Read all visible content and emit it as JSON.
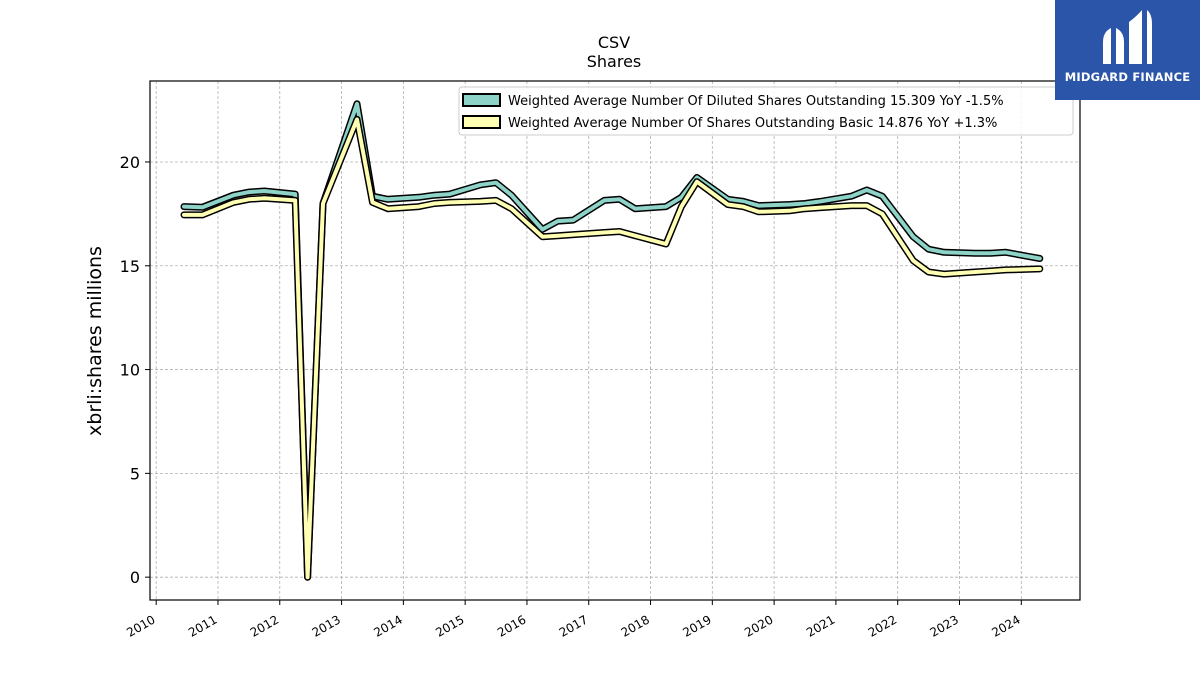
{
  "chart_data": {
    "type": "line",
    "title": "CSV",
    "subtitle": "Shares",
    "ylabel": "xbrli:shares millions",
    "xlabel": "",
    "ylim": [
      -1.1,
      23.9
    ],
    "xlim": [
      2009.9,
      2024.95
    ],
    "yticks": [
      0,
      5,
      10,
      15,
      20
    ],
    "xticks": [
      2010,
      2011,
      2012,
      2013,
      2014,
      2015,
      2016,
      2017,
      2018,
      2019,
      2020,
      2021,
      2022,
      2023,
      2024
    ],
    "grid": true,
    "legend_position": "top-right",
    "series": [
      {
        "name": "Weighted Average Number Of Diluted Shares Outstanding  15.309 YoY -1.5%",
        "color": "#8dd3c7",
        "points": [
          [
            2010.45,
            17.85
          ],
          [
            2010.75,
            17.82
          ],
          [
            2011.25,
            18.4
          ],
          [
            2011.5,
            18.55
          ],
          [
            2011.75,
            18.6
          ],
          [
            2012.25,
            18.45
          ],
          [
            2012.45,
            0.0
          ],
          [
            2012.7,
            18.0
          ],
          [
            2013.25,
            22.8
          ],
          [
            2013.5,
            18.35
          ],
          [
            2013.75,
            18.2
          ],
          [
            2014.25,
            18.3
          ],
          [
            2014.5,
            18.4
          ],
          [
            2014.75,
            18.45
          ],
          [
            2015.25,
            18.9
          ],
          [
            2015.5,
            19.0
          ],
          [
            2015.75,
            18.4
          ],
          [
            2016.25,
            16.75
          ],
          [
            2016.5,
            17.15
          ],
          [
            2016.75,
            17.2
          ],
          [
            2017.25,
            18.15
          ],
          [
            2017.5,
            18.2
          ],
          [
            2017.75,
            17.75
          ],
          [
            2018.25,
            17.85
          ],
          [
            2018.5,
            18.3
          ],
          [
            2018.75,
            19.25
          ],
          [
            2019.25,
            18.2
          ],
          [
            2019.5,
            18.1
          ],
          [
            2019.75,
            17.9
          ],
          [
            2020.25,
            17.95
          ],
          [
            2020.5,
            18.0
          ],
          [
            2020.75,
            18.1
          ],
          [
            2021.25,
            18.35
          ],
          [
            2021.5,
            18.65
          ],
          [
            2021.75,
            18.35
          ],
          [
            2022.25,
            16.4
          ],
          [
            2022.5,
            15.8
          ],
          [
            2022.75,
            15.65
          ],
          [
            2023.25,
            15.6
          ],
          [
            2023.5,
            15.6
          ],
          [
            2023.75,
            15.65
          ],
          [
            2024.3,
            15.35
          ]
        ]
      },
      {
        "name": "Weighted Average Number Of Shares Outstanding Basic  14.876 YoY +1.3%",
        "color": "#ffffb3",
        "points": [
          [
            2010.45,
            17.45
          ],
          [
            2010.75,
            17.45
          ],
          [
            2011.25,
            18.05
          ],
          [
            2011.5,
            18.2
          ],
          [
            2011.75,
            18.25
          ],
          [
            2012.25,
            18.15
          ],
          [
            2012.45,
            0.0
          ],
          [
            2012.7,
            18.0
          ],
          [
            2013.25,
            22.05
          ],
          [
            2013.5,
            18.05
          ],
          [
            2013.75,
            17.75
          ],
          [
            2014.25,
            17.85
          ],
          [
            2014.5,
            18.0
          ],
          [
            2014.75,
            18.05
          ],
          [
            2015.25,
            18.1
          ],
          [
            2015.5,
            18.15
          ],
          [
            2015.75,
            17.75
          ],
          [
            2016.25,
            16.4
          ],
          [
            2016.5,
            16.45
          ],
          [
            2016.75,
            16.5
          ],
          [
            2017.25,
            16.6
          ],
          [
            2017.5,
            16.65
          ],
          [
            2017.75,
            16.45
          ],
          [
            2018.25,
            16.05
          ],
          [
            2018.5,
            17.85
          ],
          [
            2018.75,
            19.05
          ],
          [
            2019.25,
            17.95
          ],
          [
            2019.5,
            17.85
          ],
          [
            2019.75,
            17.6
          ],
          [
            2020.25,
            17.65
          ],
          [
            2020.5,
            17.75
          ],
          [
            2020.75,
            17.8
          ],
          [
            2021.25,
            17.9
          ],
          [
            2021.5,
            17.9
          ],
          [
            2021.75,
            17.5
          ],
          [
            2022.25,
            15.25
          ],
          [
            2022.5,
            14.7
          ],
          [
            2022.75,
            14.6
          ],
          [
            2023.25,
            14.7
          ],
          [
            2023.5,
            14.75
          ],
          [
            2023.75,
            14.8
          ],
          [
            2024.3,
            14.85
          ]
        ]
      }
    ]
  },
  "logo": {
    "text": "MIDGARD FINANCE"
  }
}
